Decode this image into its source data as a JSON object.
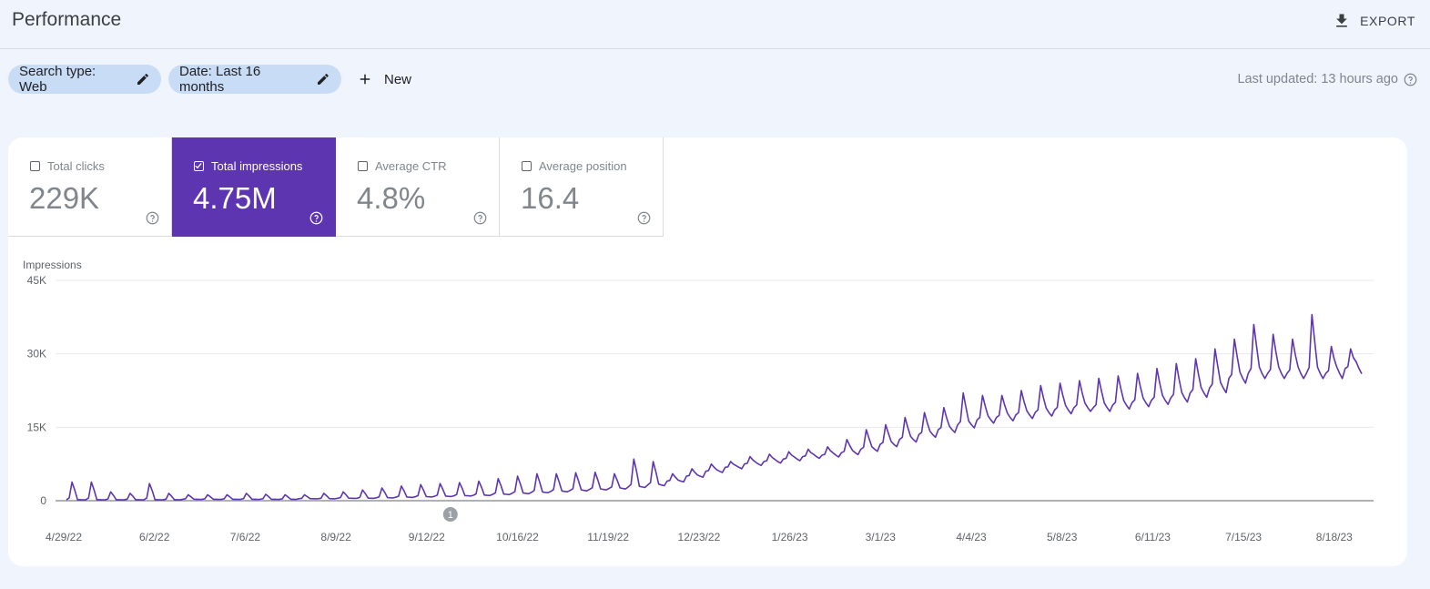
{
  "header": {
    "title": "Performance",
    "export_label": "EXPORT"
  },
  "filters": {
    "search_type": "Search type: Web",
    "date": "Date: Last 16 months",
    "new_label": "New"
  },
  "last_updated": "Last updated: 13 hours ago",
  "metrics": [
    {
      "label": "Total clicks",
      "value": "229K",
      "checked": false
    },
    {
      "label": "Total impressions",
      "value": "4.75M",
      "checked": true
    },
    {
      "label": "Average CTR",
      "value": "4.8%",
      "checked": false
    },
    {
      "label": "Average position",
      "value": "16.4",
      "checked": false
    }
  ],
  "colors": {
    "accent": "#5e35b1",
    "line": "#5e35b1",
    "chip": "#c9dcf6",
    "background": "#f0f4fc"
  },
  "chart_data": {
    "type": "line",
    "ylabel": "Impressions",
    "yticks": [
      "0",
      "15K",
      "30K",
      "45K"
    ],
    "ylim": [
      0,
      45000
    ],
    "grid": true,
    "x_tick_labels": [
      "4/29/22",
      "6/2/22",
      "7/6/22",
      "8/9/22",
      "9/12/22",
      "10/16/22",
      "11/19/22",
      "12/23/22",
      "1/26/23",
      "3/1/23",
      "4/4/23",
      "5/8/23",
      "6/11/23",
      "7/15/23",
      "8/18/23"
    ],
    "annotation": {
      "label": "1",
      "x": "9/12/22"
    },
    "series": [
      {
        "start_date": "4/29/22",
        "interval_days": 7,
        "weekly_baseline": [
          200,
          200,
          200,
          200,
          200,
          200,
          300,
          300,
          300,
          300,
          300,
          300,
          400,
          400,
          500,
          500,
          600,
          700,
          800,
          900,
          1000,
          1100,
          1300,
          1500,
          1700,
          1900,
          2100,
          2300,
          2500,
          2800,
          3200,
          4000,
          5000,
          6000,
          6800,
          7500,
          8000,
          8500,
          9000,
          9300,
          9800,
          10500,
          11500,
          12500,
          13500,
          14500,
          15500,
          16500,
          17000,
          17500,
          18000,
          18500,
          19000,
          19000,
          19500,
          20000,
          20500,
          21000,
          22000,
          23000,
          25000,
          26000,
          26000,
          26000,
          26000,
          26000,
          27000
        ],
        "weekly_peak": [
          3800,
          3800,
          1800,
          1500,
          3500,
          1500,
          1200,
          1200,
          1200,
          1500,
          1300,
          1200,
          1200,
          1500,
          1800,
          2200,
          2600,
          3000,
          3300,
          3500,
          3700,
          4000,
          4500,
          5000,
          5500,
          5500,
          5700,
          5800,
          5500,
          8500,
          8000,
          5500,
          6500,
          7500,
          8000,
          9000,
          9500,
          10000,
          10500,
          11000,
          12500,
          14500,
          15500,
          17000,
          18000,
          19000,
          22000,
          21500,
          21500,
          22500,
          23500,
          24000,
          24500,
          25000,
          25500,
          26000,
          27000,
          28000,
          29000,
          31000,
          33000,
          36000,
          34000,
          33000,
          38000,
          31500,
          31000
        ]
      }
    ]
  }
}
